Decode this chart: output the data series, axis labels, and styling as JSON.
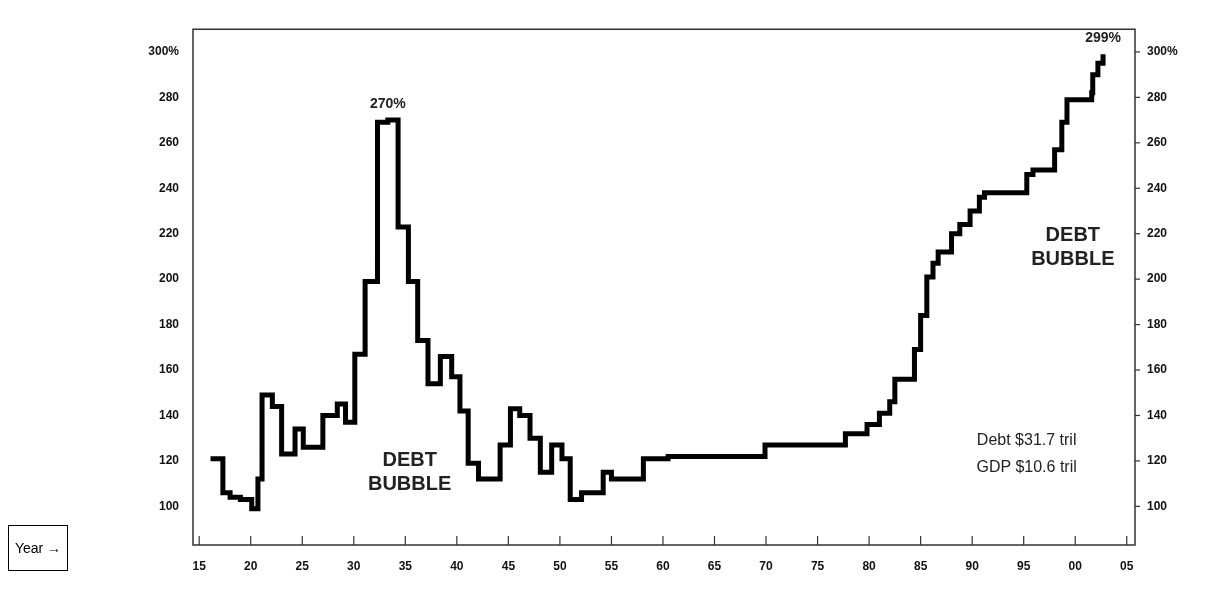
{
  "chart_data": {
    "type": "step",
    "x": [
      1916.1,
      1917.3,
      1918,
      1919,
      1920.1,
      1920.7,
      1921.1,
      1922.1,
      1923,
      1924.3,
      1925.1,
      1927,
      1928.4,
      1929.2,
      1930.1,
      1931.1,
      1932.3,
      1933.3,
      1934.3,
      1935.3,
      1936.2,
      1937.2,
      1938.4,
      1939.5,
      1940.3,
      1941.1,
      1942.1,
      1944.2,
      1945.2,
      1946.1,
      1947.1,
      1948.1,
      1949.2,
      1950.2,
      1951,
      1952.1,
      1954.2,
      1955,
      1958.1,
      1960.5,
      1969.9,
      1977.7,
      1979.8,
      1981,
      1982,
      1982.5,
      1984.4,
      1985,
      1985.6,
      1986.2,
      1986.7,
      1988,
      1988.8,
      1989.8,
      1990.7,
      1991.2,
      1995.3,
      1995.9,
      1998,
      1998.7,
      1999.2,
      2001.6,
      2001.7,
      2002.2,
      2002.7
    ],
    "series": [
      {
        "color": "#000000",
        "values": [
          121,
          106,
          104,
          103,
          99,
          112,
          149,
          144,
          123,
          134,
          126,
          140,
          145,
          137,
          167,
          199,
          269,
          270,
          223,
          199,
          173,
          154,
          166,
          157,
          142,
          119,
          112,
          127,
          143,
          140,
          130,
          115,
          127,
          121,
          103,
          106,
          115,
          112,
          121,
          122,
          127,
          132,
          136,
          141,
          146,
          156,
          169,
          184,
          201,
          207,
          212,
          220,
          224,
          230,
          236,
          238,
          246,
          248,
          257,
          269,
          279,
          282,
          290,
          295,
          299
        ]
      }
    ],
    "xlim": [
      1914.4,
      2005.8
    ],
    "xticks": [
      {
        "value": 1915,
        "label": "15"
      },
      {
        "value": 1920,
        "label": "20"
      },
      {
        "value": 1925,
        "label": "25"
      },
      {
        "value": 1930,
        "label": "30"
      },
      {
        "value": 1935,
        "label": "35"
      },
      {
        "value": 1940,
        "label": "40"
      },
      {
        "value": 1945,
        "label": "45"
      },
      {
        "value": 1950,
        "label": "50"
      },
      {
        "value": 1955,
        "label": "55"
      },
      {
        "value": 1960,
        "label": "60"
      },
      {
        "value": 1965,
        "label": "65"
      },
      {
        "value": 1970,
        "label": "70"
      },
      {
        "value": 1975,
        "label": "75"
      },
      {
        "value": 1980,
        "label": "80"
      },
      {
        "value": 1985,
        "label": "85"
      },
      {
        "value": 1990,
        "label": "90"
      },
      {
        "value": 1995,
        "label": "95"
      },
      {
        "value": 2000,
        "label": "00"
      },
      {
        "value": 2005,
        "label": "05"
      }
    ],
    "ylim": [
      83,
      310
    ],
    "yticks": [
      100,
      120,
      140,
      160,
      180,
      200,
      220,
      240,
      260,
      280,
      {
        "value": 300,
        "label": "300%"
      }
    ],
    "y2lim": [
      83,
      310
    ],
    "y2ticks": [
      100,
      120,
      140,
      160,
      180,
      200,
      220,
      240,
      260,
      280,
      {
        "value": 300,
        "label": "300%"
      }
    ],
    "annotations": [
      {
        "text": "270%",
        "x": 1933.3,
        "y": 270
      },
      {
        "text": "299%",
        "x": 2002.7,
        "y": 299
      },
      "DEBT BUBBLE",
      "DEBT BUBBLE",
      "Debt $31.7 tril",
      "GDP $10.6 tril",
      "Year →"
    ]
  }
}
